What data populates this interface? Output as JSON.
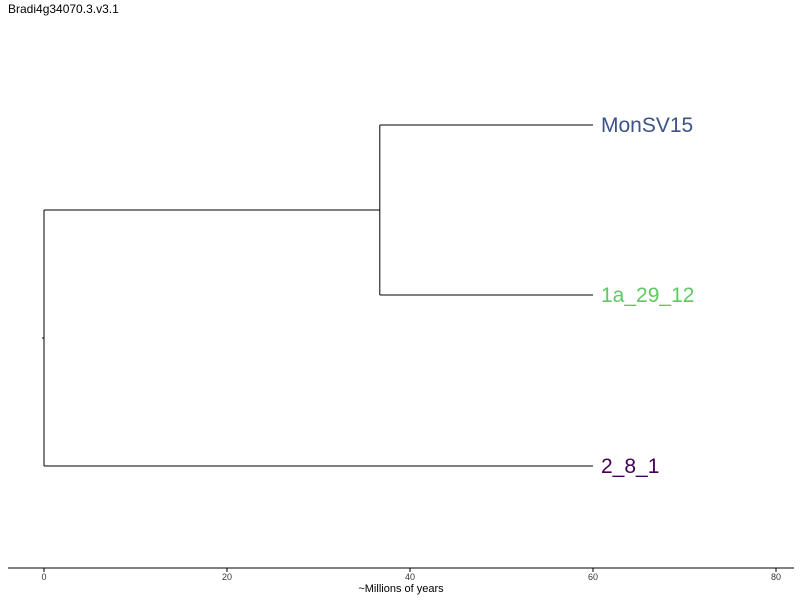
{
  "page": {
    "title": "Bradi4g34070.3.v3.1"
  },
  "chart_data": {
    "type": "tree",
    "title": "Bradi4g34070.3.v3.1",
    "xlabel": "~Millions of years",
    "ylabel": "",
    "xlim": [
      0,
      80
    ],
    "xticks": [
      0,
      20,
      40,
      60,
      80
    ],
    "grid": false,
    "tips": [
      {
        "label": "MonSV15",
        "color": "#3b528b",
        "age": 60
      },
      {
        "label": "1a_29_12",
        "color": "#5ec962",
        "age": 60
      },
      {
        "label": "2_8_1",
        "color": "#440154",
        "age": 60
      }
    ],
    "nodes": [
      {
        "name": "MonSV15+1a_29_12",
        "time": 36.7,
        "children": [
          "MonSV15",
          "1a_29_12"
        ]
      },
      {
        "name": "root",
        "time": 0,
        "children": [
          "MonSV15+1a_29_12",
          "2_8_1"
        ]
      }
    ],
    "line_color": "#000000"
  }
}
